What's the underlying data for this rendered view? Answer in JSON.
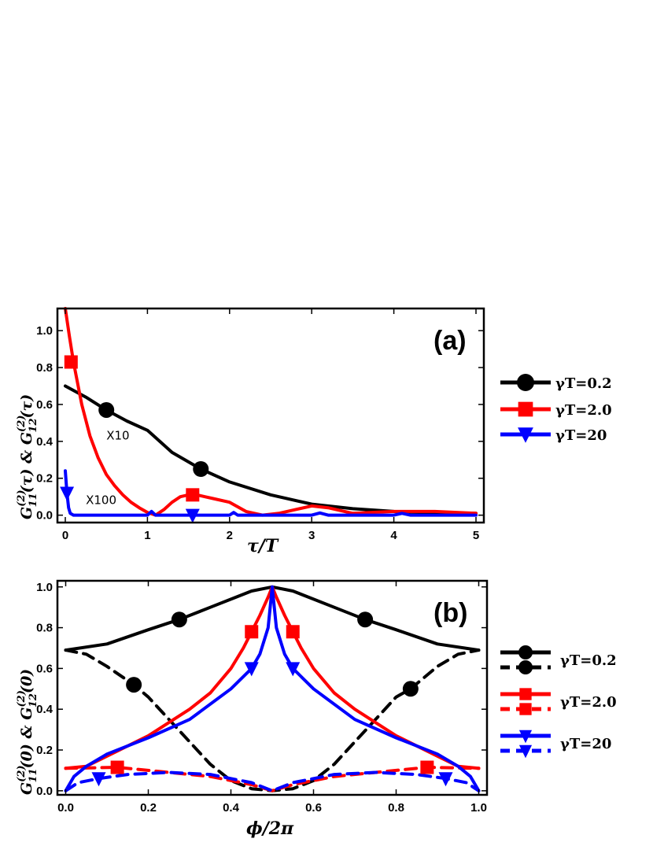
{
  "chart_data": [
    {
      "panel": "a",
      "type": "line",
      "panel_label": "(a)",
      "xlabel": "τ/T",
      "ylabel": "G11(2)(τ) & G12(2)(τ)",
      "xlim": [
        0,
        5
      ],
      "ylim": [
        -0.04,
        1.12
      ],
      "xticks": [
        0,
        1,
        2,
        3,
        4,
        5
      ],
      "xtick_labels": [
        "0",
        "1",
        "2",
        "3",
        "4",
        "5"
      ],
      "yticks": [
        0.0,
        0.2,
        0.4,
        0.6,
        0.8,
        1.0
      ],
      "ytick_labels": [
        "0.0",
        "0.2",
        "0.4",
        "0.6",
        "0.8",
        "1.0"
      ],
      "annotations": [
        {
          "text": "X10",
          "x": 0.5,
          "y": 0.41
        },
        {
          "text": "X100",
          "x": 0.25,
          "y": 0.06
        }
      ],
      "legend": [
        {
          "label": "γT=0.2",
          "color": "#000000",
          "marker": "circle"
        },
        {
          "label": "γT=2.0",
          "color": "#ff0000",
          "marker": "square"
        },
        {
          "label": "γT=20",
          "color": "#0000ff",
          "marker": "triangle-down"
        }
      ],
      "series": [
        {
          "name": "γT=0.2",
          "color": "#000000",
          "marker": "circle",
          "x": [
            0,
            0.25,
            0.5,
            0.75,
            1.0,
            1.05,
            1.3,
            1.65,
            2.0,
            2.5,
            3.0,
            3.5,
            4.0,
            4.5,
            5.0
          ],
          "y": [
            0.7,
            0.64,
            0.57,
            0.51,
            0.46,
            0.44,
            0.34,
            0.25,
            0.18,
            0.11,
            0.06,
            0.035,
            0.02,
            0.012,
            0.01
          ],
          "markers": [
            {
              "x": 0.5,
              "y": 0.57
            },
            {
              "x": 1.65,
              "y": 0.25
            }
          ]
        },
        {
          "name": "γT=2.0",
          "color": "#ff0000",
          "marker": "square",
          "x": [
            0,
            0.05,
            0.1,
            0.2,
            0.3,
            0.4,
            0.5,
            0.6,
            0.7,
            0.8,
            0.9,
            1.0,
            1.1,
            1.2,
            1.3,
            1.4,
            1.5,
            1.6,
            1.7,
            1.8,
            2.0,
            2.2,
            2.4,
            2.6,
            2.8,
            3.0,
            3.2,
            3.5,
            4.0,
            4.5,
            5.0
          ],
          "y": [
            1.12,
            0.97,
            0.83,
            0.6,
            0.43,
            0.31,
            0.22,
            0.16,
            0.11,
            0.07,
            0.04,
            0.015,
            0.0,
            0.03,
            0.07,
            0.1,
            0.11,
            0.11,
            0.1,
            0.09,
            0.07,
            0.02,
            0.0,
            0.01,
            0.03,
            0.05,
            0.04,
            0.01,
            0.02,
            0.02,
            0.01
          ],
          "markers": [
            {
              "x": 0.07,
              "y": 0.83
            },
            {
              "x": 1.55,
              "y": 0.11
            }
          ]
        },
        {
          "name": "γT=20",
          "color": "#0000ff",
          "marker": "triangle-down",
          "x": [
            0,
            0.02,
            0.04,
            0.06,
            0.1,
            0.2,
            0.5,
            1.0,
            1.05,
            1.1,
            1.5,
            2.0,
            2.05,
            2.1,
            3.0,
            3.1,
            3.2,
            4.0,
            4.1,
            4.2,
            5.0
          ],
          "y": [
            0.24,
            0.12,
            0.04,
            0.01,
            0.0,
            0.0,
            0.0,
            0.0,
            0.02,
            0.0,
            0.0,
            0.0,
            0.015,
            0.0,
            0.0,
            0.012,
            0.0,
            0.0,
            0.01,
            0.0,
            0.0
          ],
          "markers": [
            {
              "x": 0.02,
              "y": 0.12
            },
            {
              "x": 1.55,
              "y": 0.0
            }
          ]
        }
      ]
    },
    {
      "panel": "b",
      "type": "line",
      "panel_label": "(b)",
      "xlabel": "ϕ/2π",
      "ylabel": "G11(2)(0) & G12(2)(0)",
      "xlim": [
        -0.02,
        1.02
      ],
      "ylim": [
        -0.02,
        1.03
      ],
      "xticks": [
        0.0,
        0.2,
        0.4,
        0.6,
        0.8,
        1.0
      ],
      "xtick_labels": [
        "0.0",
        "0.2",
        "0.4",
        "0.6",
        "0.8",
        "1.0"
      ],
      "yticks": [
        0.0,
        0.2,
        0.4,
        0.6,
        0.8,
        1.0
      ],
      "ytick_labels": [
        "0.0",
        "0.2",
        "0.4",
        "0.6",
        "0.8",
        "1.0"
      ],
      "legend": [
        {
          "label": "γT=0.2",
          "color": "#000000",
          "marker": "circle"
        },
        {
          "label": "γT=2.0",
          "color": "#ff0000",
          "marker": "square"
        },
        {
          "label": "γT=20",
          "color": "#0000ff",
          "marker": "triangle-down"
        }
      ],
      "series": [
        {
          "name": "γT=0.2 G11",
          "color": "#000000",
          "marker": "circle",
          "dashed": false,
          "x": [
            0.0,
            0.1,
            0.2,
            0.275,
            0.35,
            0.45,
            0.5,
            0.55,
            0.65,
            0.725,
            0.8,
            0.9,
            1.0
          ],
          "y": [
            0.69,
            0.72,
            0.79,
            0.84,
            0.9,
            0.98,
            1.0,
            0.98,
            0.9,
            0.84,
            0.79,
            0.72,
            0.69
          ],
          "markers": [
            {
              "x": 0.275,
              "y": 0.84
            },
            {
              "x": 0.725,
              "y": 0.84
            }
          ]
        },
        {
          "name": "γT=0.2 G12",
          "color": "#000000",
          "marker": "circle",
          "dashed": true,
          "x": [
            0.0,
            0.05,
            0.1,
            0.165,
            0.2,
            0.25,
            0.3,
            0.35,
            0.4,
            0.45,
            0.5,
            0.55,
            0.6,
            0.65,
            0.7,
            0.75,
            0.8,
            0.835,
            0.9,
            0.95,
            1.0
          ],
          "y": [
            0.69,
            0.67,
            0.61,
            0.52,
            0.46,
            0.35,
            0.24,
            0.13,
            0.05,
            0.01,
            0.0,
            0.01,
            0.05,
            0.13,
            0.24,
            0.35,
            0.46,
            0.5,
            0.61,
            0.67,
            0.69
          ],
          "markers": [
            {
              "x": 0.165,
              "y": 0.52
            },
            {
              "x": 0.835,
              "y": 0.5
            }
          ]
        },
        {
          "name": "γT=2.0 G11",
          "color": "#ff0000",
          "marker": "square",
          "dashed": false,
          "x": [
            0.0,
            0.05,
            0.1,
            0.2,
            0.3,
            0.35,
            0.4,
            0.43,
            0.45,
            0.47,
            0.49,
            0.5,
            0.51,
            0.53,
            0.55,
            0.57,
            0.6,
            0.65,
            0.7,
            0.8,
            0.9,
            0.95,
            1.0
          ],
          "y": [
            0.11,
            0.12,
            0.17,
            0.27,
            0.4,
            0.48,
            0.6,
            0.7,
            0.78,
            0.86,
            0.95,
            1.0,
            0.95,
            0.86,
            0.78,
            0.7,
            0.6,
            0.48,
            0.4,
            0.27,
            0.17,
            0.12,
            0.11
          ],
          "markers": [
            {
              "x": 0.45,
              "y": 0.78
            },
            {
              "x": 0.55,
              "y": 0.78
            }
          ]
        },
        {
          "name": "γT=2.0 G12",
          "color": "#ff0000",
          "marker": "square",
          "dashed": true,
          "x": [
            0.0,
            0.125,
            0.25,
            0.35,
            0.45,
            0.5,
            0.55,
            0.65,
            0.75,
            0.875,
            1.0
          ],
          "y": [
            0.11,
            0.115,
            0.09,
            0.07,
            0.03,
            0.0,
            0.03,
            0.07,
            0.09,
            0.115,
            0.11
          ],
          "markers": [
            {
              "x": 0.125,
              "y": 0.115
            },
            {
              "x": 0.875,
              "y": 0.115
            }
          ]
        },
        {
          "name": "γT=20 G11",
          "color": "#0000ff",
          "marker": "triangle-down",
          "dashed": false,
          "x": [
            0.0,
            0.02,
            0.05,
            0.1,
            0.2,
            0.3,
            0.4,
            0.45,
            0.47,
            0.49,
            0.5,
            0.51,
            0.53,
            0.55,
            0.6,
            0.7,
            0.8,
            0.9,
            0.95,
            0.98,
            1.0
          ],
          "y": [
            0.0,
            0.07,
            0.12,
            0.18,
            0.26,
            0.35,
            0.5,
            0.6,
            0.67,
            0.8,
            1.0,
            0.8,
            0.67,
            0.6,
            0.5,
            0.35,
            0.26,
            0.18,
            0.12,
            0.07,
            0.0
          ],
          "markers": [
            {
              "x": 0.45,
              "y": 0.6
            },
            {
              "x": 0.55,
              "y": 0.6
            }
          ]
        },
        {
          "name": "γT=20 G12",
          "color": "#0000ff",
          "marker": "triangle-down",
          "dashed": true,
          "x": [
            0.0,
            0.03,
            0.08,
            0.15,
            0.25,
            0.35,
            0.45,
            0.5,
            0.55,
            0.65,
            0.75,
            0.85,
            0.92,
            0.97,
            1.0
          ],
          "y": [
            0.0,
            0.04,
            0.06,
            0.08,
            0.09,
            0.08,
            0.04,
            0.0,
            0.04,
            0.08,
            0.09,
            0.08,
            0.06,
            0.04,
            0.0
          ],
          "markers": [
            {
              "x": 0.08,
              "y": 0.06
            },
            {
              "x": 0.92,
              "y": 0.06
            }
          ]
        }
      ]
    }
  ]
}
